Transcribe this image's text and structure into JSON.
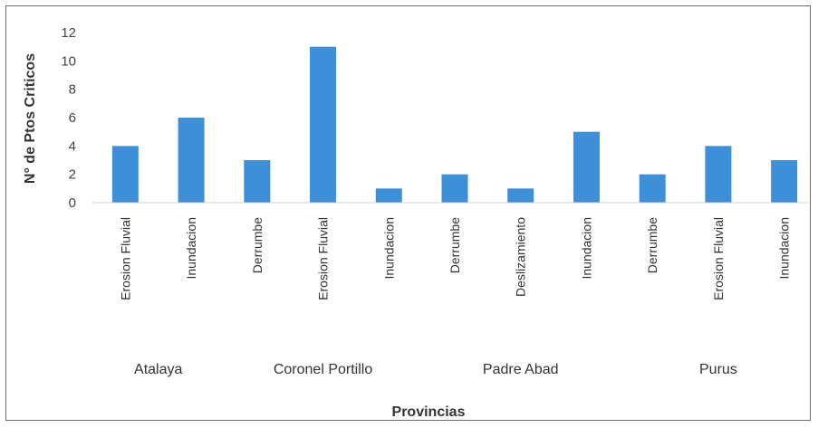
{
  "chart_data": {
    "type": "bar",
    "xlabel": "Provincias",
    "ylabel": "N° de Ptos Criticos",
    "ylim": [
      0,
      12
    ],
    "yticks": [
      0,
      2,
      4,
      6,
      8,
      10,
      12
    ],
    "grid": false,
    "bar_color": "#3d8fd8",
    "groups": [
      {
        "name": "Atalaya",
        "categories": [
          "Erosion Fluvial",
          "Inundacion"
        ],
        "values": [
          4,
          6
        ]
      },
      {
        "name": "Coronel Portillo",
        "categories": [
          "Derrumbe",
          "Erosion Fluvial",
          "Inundacion"
        ],
        "values": [
          3,
          11,
          1
        ]
      },
      {
        "name": "Padre Abad",
        "categories": [
          "Derrumbe",
          "Deslizamiento",
          "Inundacion"
        ],
        "values": [
          2,
          1,
          5
        ]
      },
      {
        "name": "Purus",
        "categories": [
          "Derrumbe",
          "Erosion Fluvial",
          "Inundacion"
        ],
        "values": [
          2,
          4,
          3
        ]
      }
    ]
  }
}
